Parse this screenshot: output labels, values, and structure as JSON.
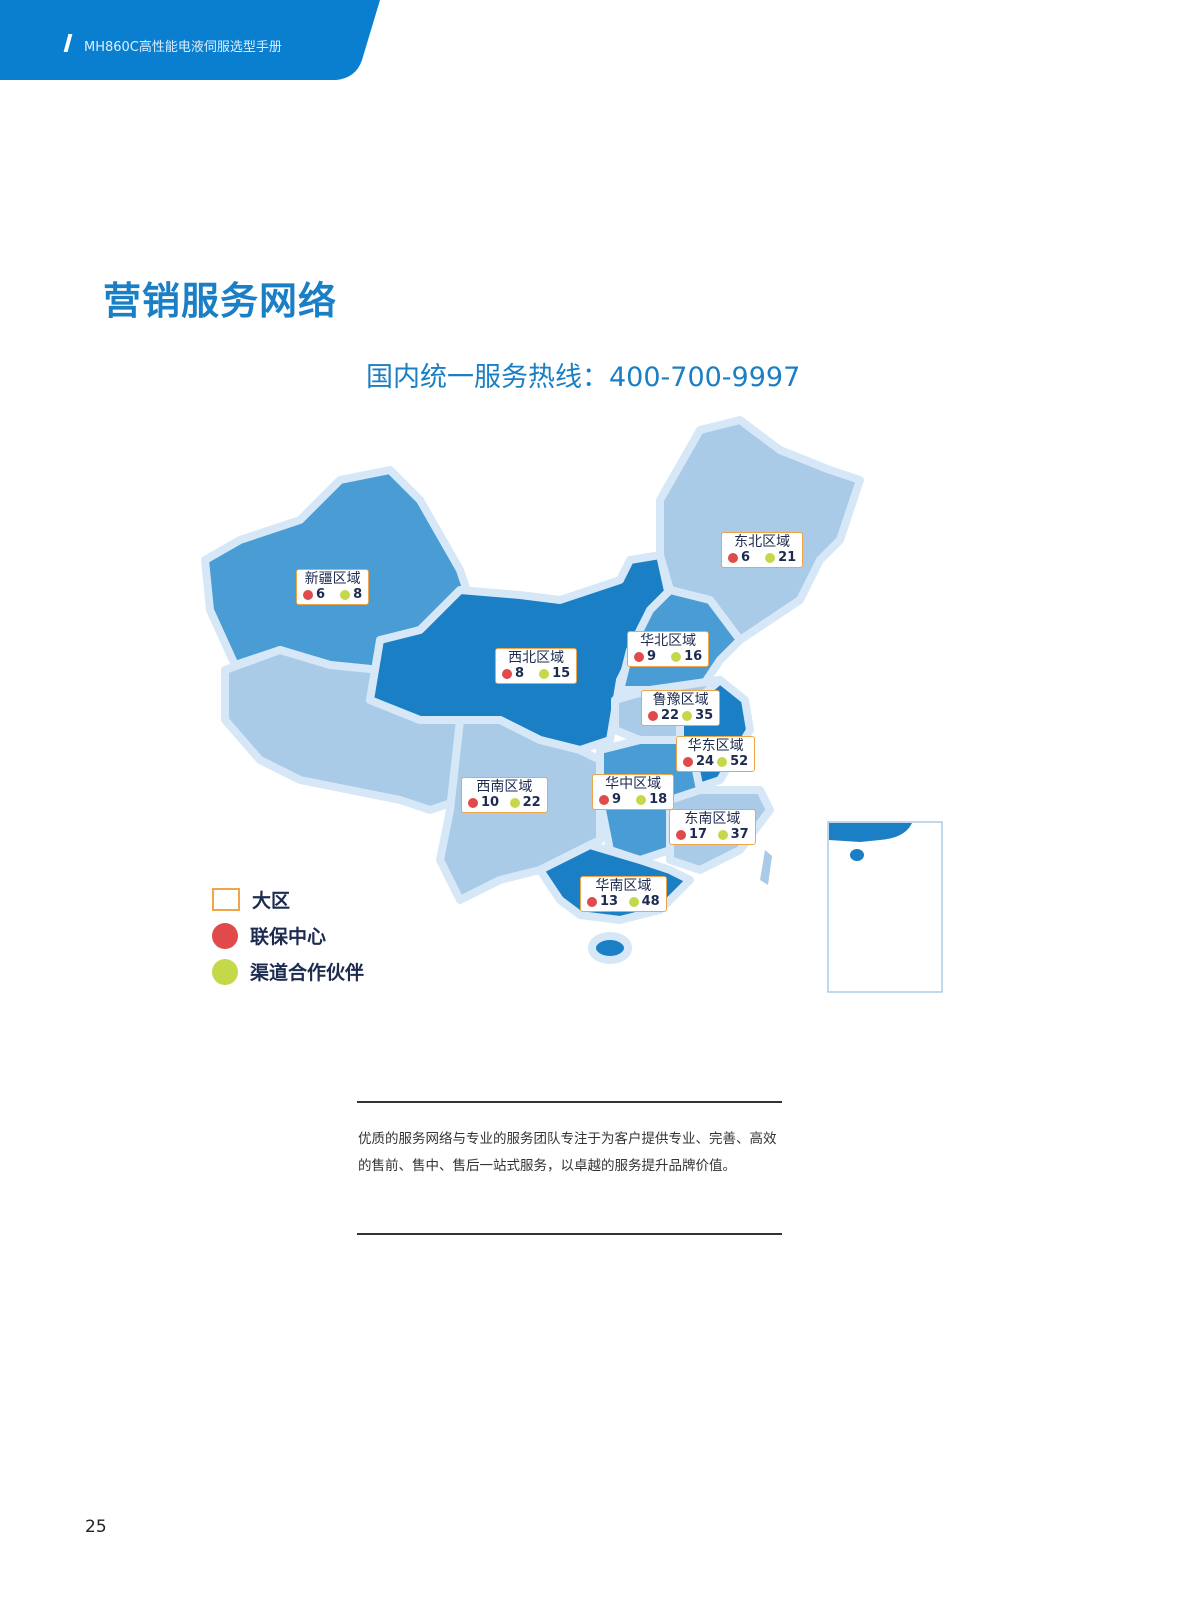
{
  "header": {
    "title": "MH860C高性能电液伺服选型手册"
  },
  "page_title": "营销服务网络",
  "hotline": "国内统一服务热线：400-700-9997",
  "colors": {
    "brand": "#0a7fcf",
    "dark_region": "#1a7fc4",
    "mid_region": "#4a9dd4",
    "light_region": "#a9cbe8",
    "label_border": "#f0a548",
    "service_center": "#e04a4a",
    "partner": "#c5d84a"
  },
  "regions": [
    {
      "name": "新疆区域",
      "service_centers": "6",
      "partners": "8"
    },
    {
      "name": "东北区域",
      "service_centers": "6",
      "partners": "21"
    },
    {
      "name": "华北区域",
      "service_centers": "9",
      "partners": "16"
    },
    {
      "name": "西北区域",
      "service_centers": "8",
      "partners": "15"
    },
    {
      "name": "鲁豫区域",
      "service_centers": "22",
      "partners": "35"
    },
    {
      "name": "华东区域",
      "service_centers": "24",
      "partners": "52"
    },
    {
      "name": "西南区域",
      "service_centers": "10",
      "partners": "22"
    },
    {
      "name": "华中区域",
      "service_centers": "9",
      "partners": "18"
    },
    {
      "name": "东南区域",
      "service_centers": "17",
      "partners": "37"
    },
    {
      "name": "华南区域",
      "service_centers": "13",
      "partners": "48"
    }
  ],
  "legend": [
    {
      "label": "大区",
      "icon": "orange-box"
    },
    {
      "label": "联保中心",
      "icon": "service-center-icon"
    },
    {
      "label": "渠道合作伙伴",
      "icon": "partner-icon"
    }
  ],
  "description": "优质的服务网络与专业的服务团队专注于为客户提供专业、完善、高效的售前、售中、售后一站式服务，以卓越的服务提升品牌价值。",
  "page_number": "25"
}
